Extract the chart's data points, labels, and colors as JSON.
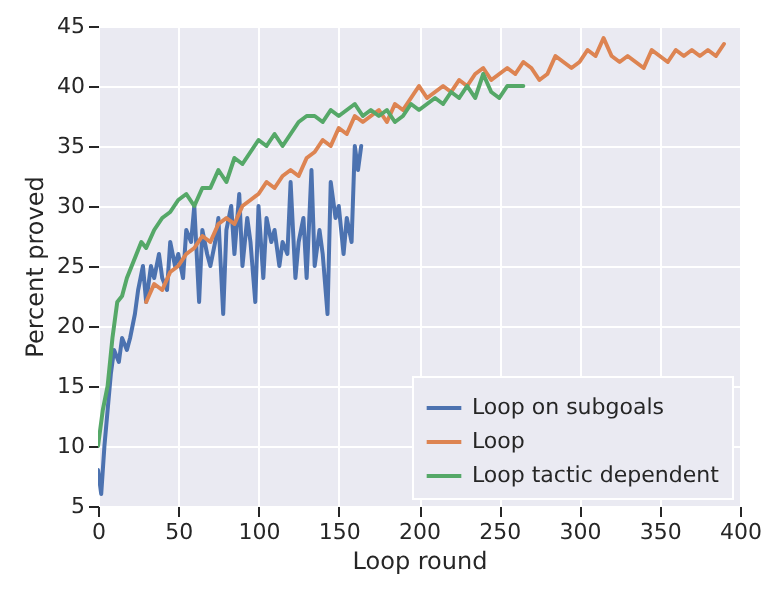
{
  "chart_data": {
    "type": "line",
    "xlabel": "Loop round",
    "ylabel": "Percent proved",
    "xlim": [
      0,
      400
    ],
    "ylim": [
      5,
      45
    ],
    "xticks": [
      0,
      50,
      100,
      150,
      200,
      250,
      300,
      350,
      400
    ],
    "yticks": [
      5,
      10,
      15,
      20,
      25,
      30,
      35,
      40,
      45
    ],
    "grid": true,
    "legend": "bottom right",
    "series": [
      {
        "name": "Loop on subgoals",
        "color": "#4c72b0",
        "x": [
          0,
          2,
          4,
          6,
          8,
          10,
          13,
          15,
          18,
          20,
          23,
          25,
          28,
          30,
          33,
          35,
          38,
          40,
          43,
          45,
          48,
          50,
          53,
          55,
          58,
          60,
          63,
          65,
          68,
          70,
          73,
          75,
          78,
          80,
          83,
          85,
          88,
          90,
          93,
          95,
          98,
          100,
          103,
          105,
          108,
          110,
          113,
          115,
          118,
          120,
          123,
          125,
          128,
          130,
          133,
          135,
          138,
          140,
          143,
          145,
          148,
          150,
          153,
          155,
          158,
          160,
          162,
          164
        ],
        "values": [
          8,
          6,
          10,
          13,
          16,
          18,
          17,
          19,
          18,
          19,
          21,
          23,
          25,
          22,
          25,
          24,
          26,
          24,
          23,
          27,
          25,
          26,
          24,
          28,
          27,
          30,
          22,
          28,
          26,
          25,
          27,
          29,
          21,
          28,
          30,
          26,
          31,
          25,
          29,
          27,
          22,
          30,
          24,
          29,
          27,
          28,
          25,
          27,
          26,
          32,
          24,
          27,
          29,
          24,
          33,
          25,
          28,
          26,
          21,
          32,
          29,
          30,
          26,
          29,
          27,
          35,
          33,
          35
        ]
      },
      {
        "name": "Loop",
        "color": "#dd8452",
        "x": [
          30,
          35,
          40,
          45,
          50,
          55,
          60,
          65,
          70,
          75,
          80,
          85,
          90,
          95,
          100,
          105,
          110,
          115,
          120,
          125,
          130,
          135,
          140,
          145,
          150,
          155,
          160,
          165,
          170,
          175,
          180,
          185,
          190,
          195,
          200,
          205,
          210,
          215,
          220,
          225,
          230,
          235,
          240,
          245,
          250,
          255,
          260,
          265,
          270,
          275,
          280,
          285,
          290,
          295,
          300,
          305,
          310,
          315,
          320,
          325,
          330,
          335,
          340,
          345,
          350,
          355,
          360,
          365,
          370,
          375,
          380,
          385,
          390
        ],
        "values": [
          22,
          23.5,
          23,
          24.5,
          25,
          26,
          26.5,
          27.5,
          27,
          28.5,
          29,
          28.5,
          30,
          30.5,
          31,
          32,
          31.5,
          32.5,
          33,
          32.5,
          34,
          34.5,
          35.5,
          35,
          36.5,
          36,
          37.5,
          37,
          37.5,
          38,
          37,
          38.5,
          38,
          39,
          40,
          39,
          39.5,
          40,
          39.5,
          40.5,
          40,
          41,
          41.5,
          40.5,
          41,
          41.5,
          41,
          42,
          41.5,
          40.5,
          41,
          42.5,
          42,
          41.5,
          42,
          43,
          42.5,
          44,
          42.5,
          42,
          42.5,
          42,
          41.5,
          43,
          42.5,
          42,
          43,
          42.5,
          43,
          42.5,
          43,
          42.5,
          43.5
        ]
      },
      {
        "name": "Loop tactic dependent",
        "color": "#55a868",
        "x": [
          0,
          3,
          6,
          9,
          12,
          15,
          18,
          21,
          24,
          27,
          30,
          35,
          40,
          45,
          50,
          55,
          60,
          65,
          70,
          75,
          80,
          85,
          90,
          95,
          100,
          105,
          110,
          115,
          120,
          125,
          130,
          135,
          140,
          145,
          150,
          155,
          160,
          165,
          170,
          175,
          180,
          185,
          190,
          195,
          200,
          205,
          210,
          215,
          220,
          225,
          230,
          235,
          240,
          245,
          250,
          255,
          260,
          265
        ],
        "values": [
          10,
          13,
          15,
          19,
          22,
          22.5,
          24,
          25,
          26,
          27,
          26.5,
          28,
          29,
          29.5,
          30.5,
          31,
          30,
          31.5,
          31.5,
          33,
          32,
          34,
          33.5,
          34.5,
          35.5,
          35,
          36,
          35,
          36,
          37,
          37.5,
          37.5,
          37,
          38,
          37.5,
          38,
          38.5,
          37.5,
          38,
          37.5,
          38,
          37,
          37.5,
          38.5,
          38,
          38.5,
          39,
          38.5,
          39.5,
          39,
          40,
          39,
          41,
          39.5,
          39,
          40,
          40,
          40
        ]
      }
    ]
  }
}
